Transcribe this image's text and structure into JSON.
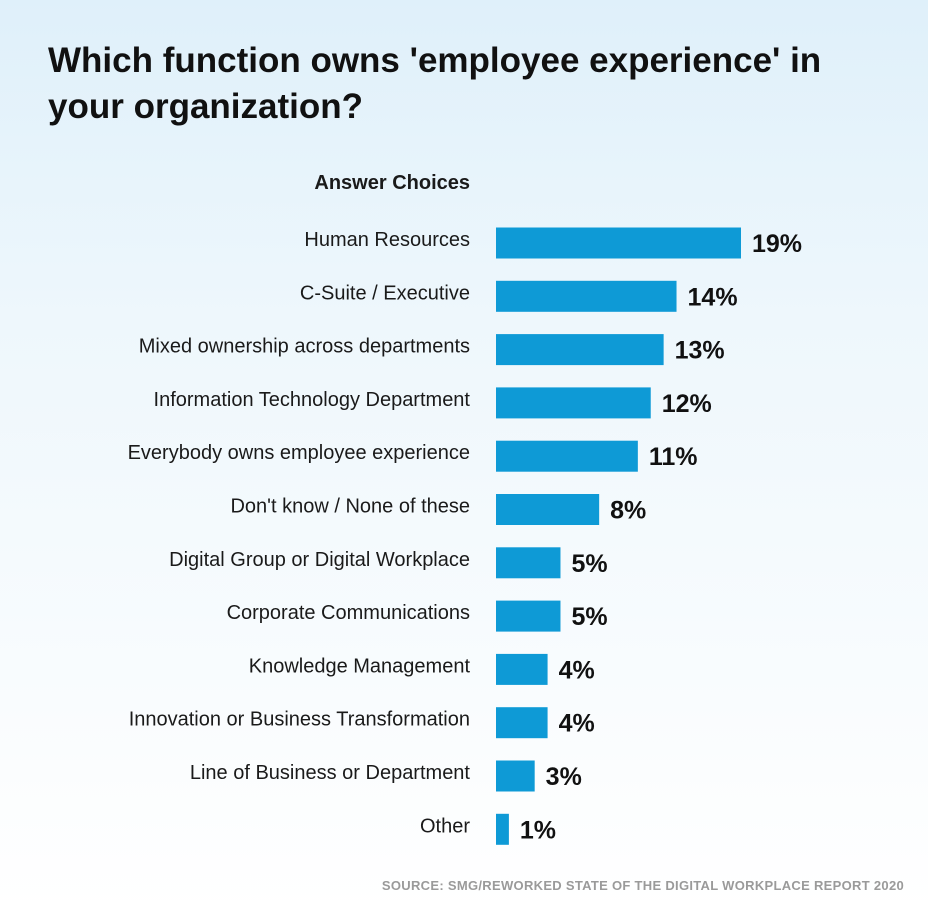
{
  "title": "Which function owns 'employee experience' in your organization?",
  "column_header": "Answer Choices",
  "source": "SOURCE: SMG/REWORKED STATE OF THE DIGITAL WORKPLACE REPORT 2020",
  "colors": {
    "bar": "#0e9ad6",
    "text": "#1a1a1a"
  },
  "chart_data": {
    "type": "bar",
    "orientation": "horizontal",
    "title": "Which function owns 'employee experience' in your organization?",
    "categories": [
      "Human Resources",
      "C-Suite / Executive",
      "Mixed ownership across departments",
      "Information Technology Department",
      "Everybody owns employee experience",
      "Don't know / None of these",
      "Digital Group or Digital Workplace",
      "Corporate Communications",
      "Knowledge Management",
      "Innovation or Business Transformation",
      "Line of Business or Department",
      "Other"
    ],
    "values": [
      19,
      14,
      13,
      12,
      11,
      8,
      5,
      5,
      4,
      4,
      3,
      1
    ],
    "value_labels": [
      "19%",
      "14%",
      "13%",
      "12%",
      "11%",
      "8%",
      "5%",
      "5%",
      "4%",
      "4%",
      "3%",
      "1%"
    ],
    "unit": "%",
    "grid": false,
    "legend": "none"
  }
}
